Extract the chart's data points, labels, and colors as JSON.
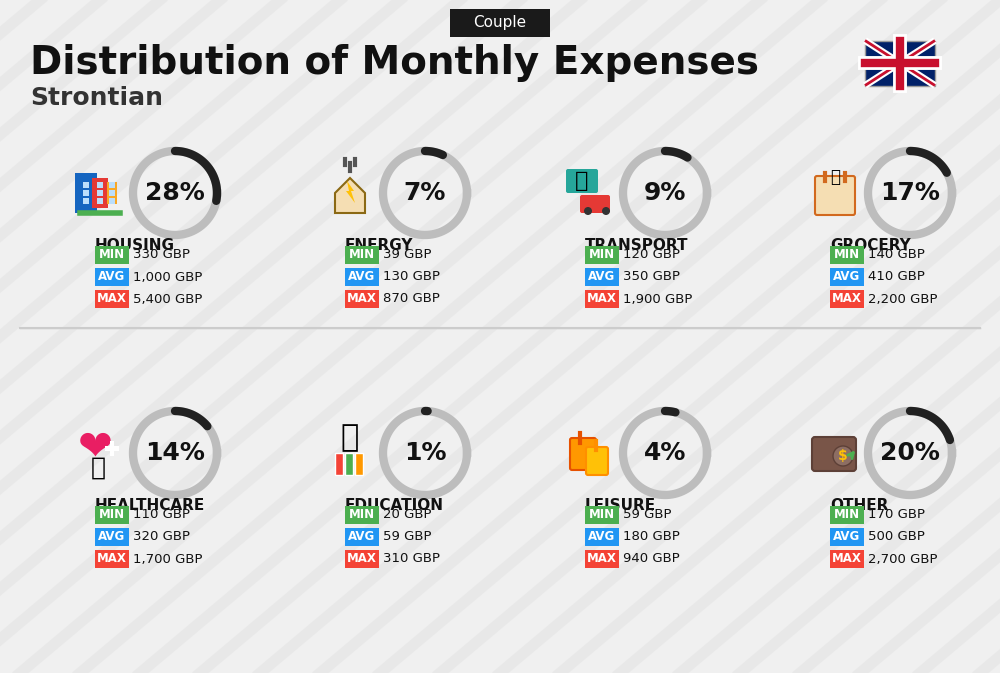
{
  "title": "Distribution of Monthly Expenses",
  "subtitle": "Strontian",
  "tag": "Couple",
  "bg_color": "#f0f0f0",
  "categories": [
    {
      "name": "HOUSING",
      "percent": 28,
      "min": "330 GBP",
      "avg": "1,000 GBP",
      "max": "5,400 GBP",
      "icon_color": "#2196F3",
      "row": 0,
      "col": 0
    },
    {
      "name": "ENERGY",
      "percent": 7,
      "min": "39 GBP",
      "avg": "130 GBP",
      "max": "870 GBP",
      "icon_color": "#FFC107",
      "row": 0,
      "col": 1
    },
    {
      "name": "TRANSPORT",
      "percent": 9,
      "min": "120 GBP",
      "avg": "350 GBP",
      "max": "1,900 GBP",
      "icon_color": "#26A69A",
      "row": 0,
      "col": 2
    },
    {
      "name": "GROCERY",
      "percent": 17,
      "min": "140 GBP",
      "avg": "410 GBP",
      "max": "2,200 GBP",
      "icon_color": "#8BC34A",
      "row": 0,
      "col": 3
    },
    {
      "name": "HEALTHCARE",
      "percent": 14,
      "min": "110 GBP",
      "avg": "320 GBP",
      "max": "1,700 GBP",
      "icon_color": "#E91E63",
      "row": 1,
      "col": 0
    },
    {
      "name": "EDUCATION",
      "percent": 1,
      "min": "20 GBP",
      "avg": "59 GBP",
      "max": "310 GBP",
      "icon_color": "#FF5722",
      "row": 1,
      "col": 1
    },
    {
      "name": "LEISURE",
      "percent": 4,
      "min": "59 GBP",
      "avg": "180 GBP",
      "max": "940 GBP",
      "icon_color": "#FF9800",
      "row": 1,
      "col": 2
    },
    {
      "name": "OTHER",
      "percent": 20,
      "min": "170 GBP",
      "avg": "500 GBP",
      "max": "2,700 GBP",
      "icon_color": "#795548",
      "row": 1,
      "col": 3
    }
  ],
  "min_color": "#4CAF50",
  "avg_color": "#2196F3",
  "max_color": "#F44336",
  "arc_color": "#212121",
  "arc_bg_color": "#BDBDBD",
  "label_color": "#212121",
  "tag_bg": "#1a1a1a",
  "tag_fg": "#ffffff",
  "title_fontsize": 28,
  "subtitle_fontsize": 18,
  "category_fontsize": 11,
  "value_fontsize": 10,
  "percent_fontsize": 18
}
